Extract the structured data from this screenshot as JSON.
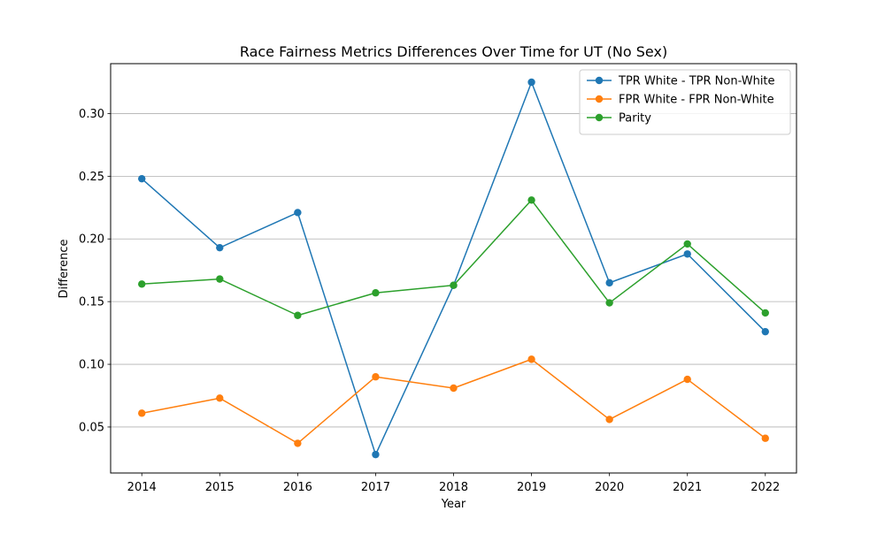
{
  "chart_data": {
    "type": "line",
    "title": "Race Fairness Metrics Differences Over Time for UT (No Sex)",
    "xlabel": "Year",
    "ylabel": "Difference",
    "x": [
      2014,
      2015,
      2016,
      2017,
      2018,
      2019,
      2020,
      2021,
      2022
    ],
    "xlim": [
      2013.6,
      2022.4
    ],
    "ylim": [
      0.0133,
      0.3398
    ],
    "yticks": [
      0.05,
      0.1,
      0.15,
      0.2,
      0.25,
      0.3
    ],
    "ytick_labels": [
      "0.05",
      "0.10",
      "0.15",
      "0.20",
      "0.25",
      "0.30"
    ],
    "grid": "y-axis on",
    "legend_position": "top-right",
    "series": [
      {
        "name": "TPR White - TPR Non-White",
        "color": "#1f77b4",
        "values": [
          0.248,
          0.193,
          0.221,
          0.028,
          0.163,
          0.325,
          0.165,
          0.188,
          0.126
        ]
      },
      {
        "name": "FPR White - FPR Non-White",
        "color": "#ff7f0e",
        "values": [
          0.061,
          0.073,
          0.037,
          0.09,
          0.081,
          0.104,
          0.056,
          0.088,
          0.041
        ]
      },
      {
        "name": "Parity",
        "color": "#2ca02c",
        "values": [
          0.164,
          0.168,
          0.139,
          0.157,
          0.163,
          0.231,
          0.149,
          0.196,
          0.141
        ]
      }
    ]
  }
}
